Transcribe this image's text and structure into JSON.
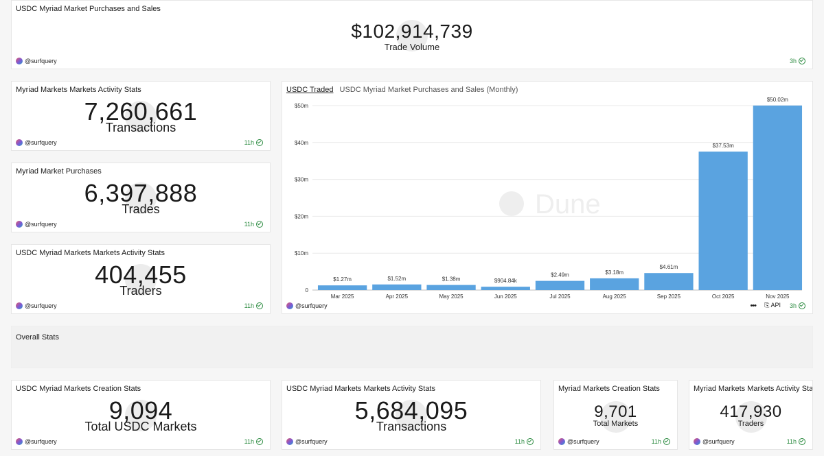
{
  "header_card": {
    "title": "USDC Myriad Market Purchases and Sales",
    "value": "$102,914,739",
    "label": "Trade Volume",
    "user": "@surfquery",
    "age": "3h"
  },
  "activity_card": {
    "title": "Myriad Markets Markets Activity Stats",
    "value": "7,260,661",
    "label": "Transactions",
    "user": "@surfquery",
    "age": "11h"
  },
  "purchases_card": {
    "title": "Myriad Market Purchases",
    "value": "6,397,888",
    "label": "Trades",
    "user": "@surfquery",
    "age": "11h"
  },
  "usdc_activity_card": {
    "title": "USDC Myriad Markets Markets Activity Stats",
    "value": "404,455",
    "label": "Traders",
    "user": "@surfquery",
    "age": "11h"
  },
  "chart_card": {
    "tab_active": "USDC Traded",
    "tab_inactive": "USDC Myriad Market Purchases and Sales (Monthly)",
    "watermark": "Dune",
    "user": "@surfquery",
    "api_label": "API",
    "age": "3h"
  },
  "chart_data": {
    "type": "bar",
    "title": "USDC Myriad Market Purchases and Sales (Monthly)",
    "categories": [
      "Mar 2025",
      "Apr 2025",
      "May 2025",
      "Jun 2025",
      "Jul 2025",
      "Aug 2025",
      "Sep 2025",
      "Oct 2025",
      "Nov 2025"
    ],
    "values": [
      1.27,
      1.52,
      1.38,
      0.90484,
      2.49,
      3.18,
      4.61,
      37.53,
      50.02
    ],
    "data_labels": [
      "$1.27m",
      "$1.52m",
      "$1.38m",
      "$904.84k",
      "$2.49m",
      "$3.18m",
      "$4.61m",
      "$37.53m",
      "$50.02m"
    ],
    "y_ticks": [
      0,
      10,
      20,
      30,
      40,
      50
    ],
    "y_tick_labels": [
      "0",
      "$10m",
      "$20m",
      "$30m",
      "$40m",
      "$50m"
    ],
    "ylim": [
      0,
      50
    ],
    "bar_color": "#5aa3e0",
    "xlabel": "",
    "ylabel": ""
  },
  "overall_section": {
    "title": "Overall Stats"
  },
  "creation_card": {
    "title": "USDC Myriad Markets Creation Stats",
    "value": "9,094",
    "label": "Total USDC Markets",
    "user": "@surfquery",
    "age": "11h"
  },
  "usdc_tx_card": {
    "title": "USDC Myriad Markets Markets Activity Stats",
    "value": "5,684,095",
    "label": "Transactions",
    "user": "@surfquery",
    "age": "11h"
  },
  "markets_creation_card": {
    "title": "Myriad Markets Creation Stats",
    "value": "9,701",
    "label": "Total Markets",
    "user": "@surfquery",
    "age": "11h"
  },
  "traders_card": {
    "title": "Myriad Markets Markets Activity Stats",
    "value": "417,930",
    "label": "Traders",
    "user": "@surfquery",
    "age": "11h"
  }
}
